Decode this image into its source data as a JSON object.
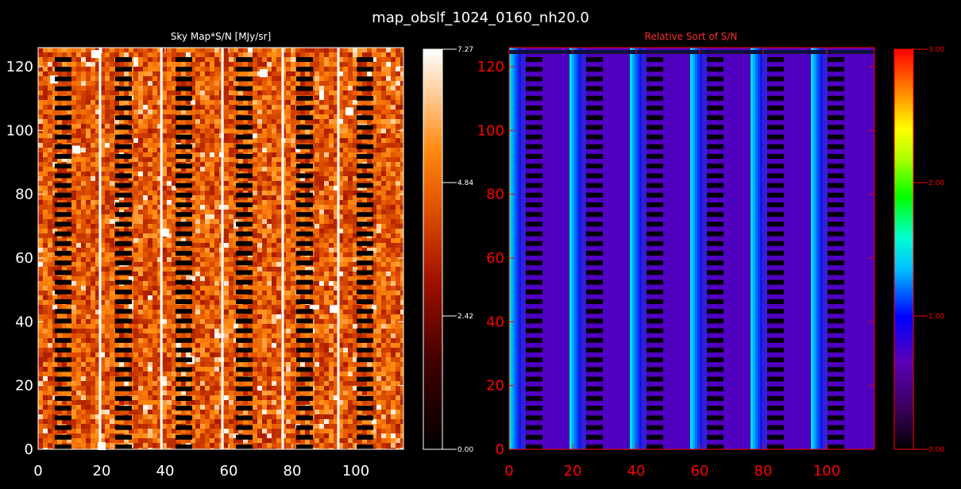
{
  "figure": {
    "title": "map_obslf_1024_0160_nh20.0"
  },
  "chart_data": [
    {
      "type": "heatmap",
      "title": "Sky Map*S/N [MJy/sr]",
      "xlim": [
        0,
        115
      ],
      "ylim": [
        0,
        126
      ],
      "xticks": [
        0,
        20,
        40,
        60,
        80,
        100
      ],
      "yticks": [
        0,
        20,
        40,
        60,
        80,
        100,
        120
      ],
      "colormap": "red-temperature",
      "axis_color": "#ffffff",
      "title_color": "#ffffff",
      "colorbar": {
        "range": [
          0.0,
          7.27
        ],
        "ticks": [
          "0.00",
          "2.42",
          "4.84",
          "7.27"
        ],
        "color": "#ffffff"
      },
      "masked_columns_x": [
        7,
        26,
        45,
        64,
        83,
        102
      ],
      "bright_columns_x": [
        19.5,
        38.8,
        58,
        77,
        94.5
      ],
      "grid": false
    },
    {
      "type": "heatmap",
      "title": "Relative Sort of S/N",
      "xlim": [
        0,
        115
      ],
      "ylim": [
        0,
        126
      ],
      "xticks": [
        0,
        20,
        40,
        60,
        80,
        100
      ],
      "yticks": [
        0,
        20,
        40,
        60,
        80,
        100,
        120
      ],
      "colormap": "rainbow",
      "axis_color": "#ff0000",
      "title_color": "#ff3030",
      "colorbar": {
        "range": [
          0.0,
          3.0
        ],
        "ticks": [
          "0.00",
          "1.00",
          "2.00",
          "3.00"
        ],
        "color": "#ff0000"
      },
      "masked_columns_x": [
        7,
        26,
        45,
        64,
        83,
        102
      ],
      "stripe_columns_x": [
        0,
        19,
        38,
        57,
        76,
        95
      ],
      "grid": false
    }
  ]
}
